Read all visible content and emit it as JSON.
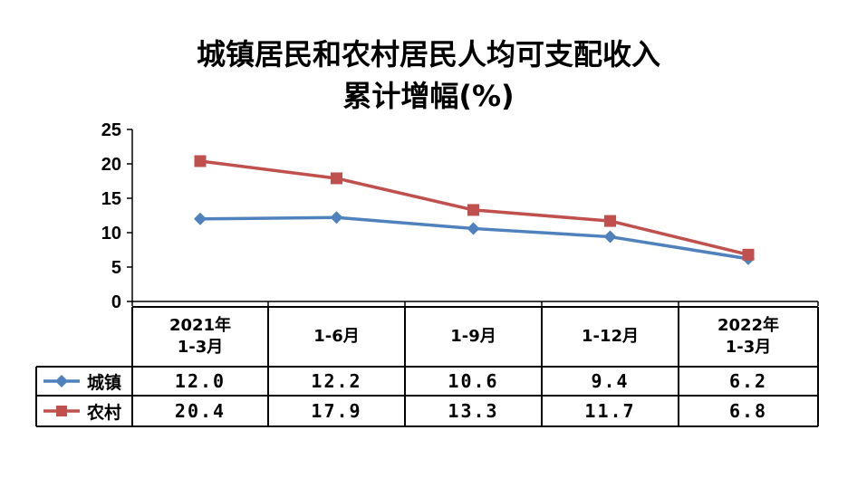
{
  "chart_data": {
    "type": "line",
    "title_line1": "城镇居民和农村居民人均可支配收入",
    "title_line2": "累计增幅(%)",
    "categories": [
      "2021年\n1-3月",
      "1-6月",
      "1-9月",
      "1-12月",
      "2022年\n1-3月"
    ],
    "yticks": [
      "0",
      "5",
      "10",
      "15",
      "20",
      "25"
    ],
    "ylim": [
      0,
      25
    ],
    "series": [
      {
        "name": "城镇",
        "values": [
          12.0,
          12.2,
          10.6,
          9.4,
          6.2
        ],
        "labels": [
          "12.0",
          "12.2",
          "10.6",
          "9.4",
          "6.2"
        ],
        "color": "#4F81BD",
        "marker": "diamond"
      },
      {
        "name": "农村",
        "values": [
          20.4,
          17.9,
          13.3,
          11.7,
          6.8
        ],
        "labels": [
          "20.4",
          "17.9",
          "13.3",
          "11.7",
          "6.8"
        ],
        "color": "#C0504D",
        "marker": "square"
      }
    ],
    "grid": false,
    "legend": "data-table"
  }
}
